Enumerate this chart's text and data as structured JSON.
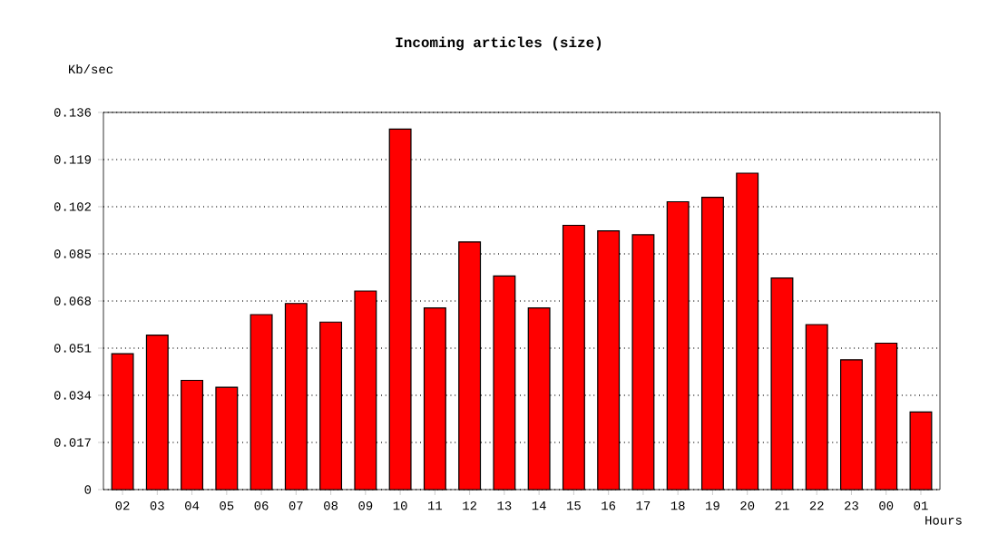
{
  "chart_data": {
    "type": "bar",
    "title": "Incoming articles (size)",
    "ylabel": "Kb/sec",
    "xlabel": "Hours",
    "categories": [
      "02",
      "03",
      "04",
      "05",
      "06",
      "07",
      "08",
      "09",
      "10",
      "11",
      "12",
      "13",
      "14",
      "15",
      "16",
      "17",
      "18",
      "19",
      "20",
      "21",
      "22",
      "23",
      "00",
      "01"
    ],
    "values": [
      0.049,
      0.0557,
      0.0394,
      0.0369,
      0.0631,
      0.0671,
      0.0604,
      0.0716,
      0.13,
      0.0655,
      0.0893,
      0.077,
      0.0655,
      0.0953,
      0.0933,
      0.0919,
      0.1038,
      0.1054,
      0.1141,
      0.0763,
      0.0595,
      0.0468,
      0.0528,
      0.028
    ],
    "color": "#ff0000",
    "ylim": [
      0,
      0.136
    ],
    "yticks": [
      0,
      0.017,
      0.034,
      0.051,
      0.068,
      0.085,
      0.102,
      0.119,
      0.136
    ],
    "grid": "y"
  }
}
